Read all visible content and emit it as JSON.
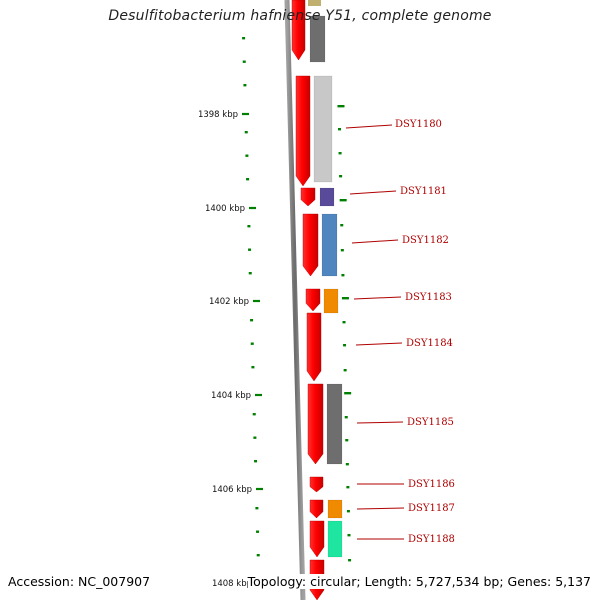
{
  "title": "Desulfitobacterium hafniense Y51, complete genome",
  "footer": {
    "accession": "Accession: NC_007907",
    "summary": "Topology: circular; Length: 5,727,534 bp; Genes: 5,137"
  },
  "position_labels": [
    {
      "text": "1398 kbp",
      "kbp": 1398
    },
    {
      "text": "1400 kbp",
      "kbp": 1400
    },
    {
      "text": "1402 kbp",
      "kbp": 1402
    },
    {
      "text": "1404 kbp",
      "kbp": 1404
    },
    {
      "text": "1406 kbp",
      "kbp": 1406
    },
    {
      "text": "1408 kbp",
      "kbp": 1408
    }
  ],
  "genes": [
    {
      "label": "DSY1180",
      "cog_color": "#c8c8c8"
    },
    {
      "label": "DSY1181",
      "cog_color": "#5a4a9a"
    },
    {
      "label": "DSY1182",
      "cog_color": "#4f86c0"
    },
    {
      "label": "DSY1183",
      "cog_color": "#f08a00"
    },
    {
      "label": "DSY1184",
      "cog_color": null
    },
    {
      "label": "DSY1185",
      "cog_color": "#6e6e6e"
    },
    {
      "label": "DSY1186",
      "cog_color": null
    },
    {
      "label": "DSY1187",
      "cog_color": "#f08a00"
    },
    {
      "label": "DSY1188",
      "cog_color": "#1ee6a0"
    }
  ],
  "colors": {
    "cds": "#ff0000",
    "backbone": "#808080",
    "tick": "#008000",
    "label": "#b00000"
  }
}
